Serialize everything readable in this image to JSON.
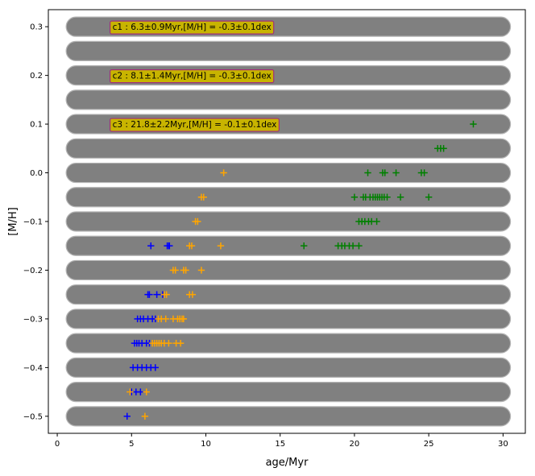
{
  "chart_data": {
    "type": "scatter",
    "title": "",
    "xlabel": "age/Myr",
    "ylabel": "[M/H]",
    "xlim": [
      -0.6,
      31.5
    ],
    "ylim": [
      -0.535,
      0.335
    ],
    "xticks": [
      0,
      5,
      10,
      15,
      20,
      25,
      30
    ],
    "xtick_labels": [
      "0",
      "5",
      "10",
      "15",
      "20",
      "25",
      "30"
    ],
    "yticks": [
      -0.5,
      -0.4,
      -0.3,
      -0.2,
      -0.1,
      0.0,
      0.1,
      0.2,
      0.3
    ],
    "ytick_labels": [
      "−0.5",
      "−0.4",
      "−0.3",
      "−0.2",
      "−0.1",
      "0.0",
      "0.1",
      "0.2",
      "0.3"
    ],
    "grid": false,
    "legend": "none",
    "band_rows": [
      -0.5,
      -0.45,
      -0.4,
      -0.35,
      -0.3,
      -0.25,
      -0.2,
      -0.15,
      -0.1,
      -0.05,
      0.0,
      0.05,
      0.1,
      0.15,
      0.2,
      0.25,
      0.3
    ],
    "band_xrange": [
      0.6,
      30.5
    ],
    "band_color": "#808080",
    "annotations": [
      {
        "text": "c1 : 6.3±0.9Myr,[M/H] = -0.3±0.1dex",
        "x": 3.5,
        "y": 0.3
      },
      {
        "text": "c2 : 8.1±1.4Myr,[M/H] = -0.3±0.1dex",
        "x": 3.5,
        "y": 0.2
      },
      {
        "text": "c3 : 21.8±2.2Myr,[M/H] = -0.1±0.1dex",
        "x": 3.5,
        "y": 0.1
      }
    ],
    "annotation_style": {
      "facecolor": "#c8b400",
      "edgecolor": "#a0307a"
    },
    "series": [
      {
        "color": "#0000ff",
        "marker": "+",
        "points": [
          [
            4.7,
            -0.5
          ],
          [
            5.0,
            -0.45
          ],
          [
            5.3,
            -0.45
          ],
          [
            5.6,
            -0.45
          ],
          [
            5.1,
            -0.4
          ],
          [
            5.4,
            -0.4
          ],
          [
            5.7,
            -0.4
          ],
          [
            6.0,
            -0.4
          ],
          [
            6.3,
            -0.4
          ],
          [
            6.6,
            -0.4
          ],
          [
            5.2,
            -0.35
          ],
          [
            5.35,
            -0.35
          ],
          [
            5.5,
            -0.35
          ],
          [
            5.7,
            -0.35
          ],
          [
            6.0,
            -0.35
          ],
          [
            6.2,
            -0.35
          ],
          [
            5.4,
            -0.3
          ],
          [
            5.6,
            -0.3
          ],
          [
            5.8,
            -0.3
          ],
          [
            6.1,
            -0.3
          ],
          [
            6.4,
            -0.3
          ],
          [
            6.6,
            -0.3
          ],
          [
            6.1,
            -0.25
          ],
          [
            6.2,
            -0.25
          ],
          [
            6.7,
            -0.25
          ],
          [
            7.1,
            -0.25
          ],
          [
            6.3,
            -0.15
          ],
          [
            7.4,
            -0.15
          ],
          [
            7.5,
            -0.15
          ],
          [
            7.55,
            -0.15
          ]
        ]
      },
      {
        "color": "#ffa500",
        "marker": "+",
        "points": [
          [
            5.9,
            -0.5
          ],
          [
            4.9,
            -0.45
          ],
          [
            6.0,
            -0.45
          ],
          [
            6.4,
            -0.35
          ],
          [
            6.55,
            -0.35
          ],
          [
            6.7,
            -0.35
          ],
          [
            6.85,
            -0.35
          ],
          [
            7.0,
            -0.35
          ],
          [
            7.2,
            -0.35
          ],
          [
            7.5,
            -0.35
          ],
          [
            8.0,
            -0.35
          ],
          [
            8.3,
            -0.35
          ],
          [
            6.8,
            -0.3
          ],
          [
            7.0,
            -0.3
          ],
          [
            7.3,
            -0.3
          ],
          [
            7.8,
            -0.3
          ],
          [
            8.1,
            -0.3
          ],
          [
            8.25,
            -0.3
          ],
          [
            8.4,
            -0.3
          ],
          [
            8.5,
            -0.3
          ],
          [
            7.2,
            -0.25
          ],
          [
            7.35,
            -0.25
          ],
          [
            8.9,
            -0.25
          ],
          [
            9.1,
            -0.25
          ],
          [
            7.8,
            -0.2
          ],
          [
            7.95,
            -0.2
          ],
          [
            8.5,
            -0.2
          ],
          [
            8.65,
            -0.2
          ],
          [
            9.7,
            -0.2
          ],
          [
            8.9,
            -0.15
          ],
          [
            9.05,
            -0.15
          ],
          [
            11.0,
            -0.15
          ],
          [
            9.3,
            -0.1
          ],
          [
            9.45,
            -0.1
          ],
          [
            9.7,
            -0.05
          ],
          [
            9.85,
            -0.05
          ],
          [
            11.2,
            0.0
          ]
        ]
      },
      {
        "color": "#008000",
        "marker": "+",
        "points": [
          [
            16.6,
            -0.15
          ],
          [
            18.9,
            -0.15
          ],
          [
            19.15,
            -0.15
          ],
          [
            19.35,
            -0.15
          ],
          [
            19.65,
            -0.15
          ],
          [
            19.9,
            -0.15
          ],
          [
            20.3,
            -0.15
          ],
          [
            20.3,
            -0.1
          ],
          [
            20.5,
            -0.1
          ],
          [
            20.7,
            -0.1
          ],
          [
            20.95,
            -0.1
          ],
          [
            21.15,
            -0.1
          ],
          [
            21.5,
            -0.1
          ],
          [
            20.0,
            -0.05
          ],
          [
            20.6,
            -0.05
          ],
          [
            20.75,
            -0.05
          ],
          [
            21.05,
            -0.05
          ],
          [
            21.25,
            -0.05
          ],
          [
            21.4,
            -0.05
          ],
          [
            21.55,
            -0.05
          ],
          [
            21.7,
            -0.05
          ],
          [
            21.85,
            -0.05
          ],
          [
            22.0,
            -0.05
          ],
          [
            22.2,
            -0.05
          ],
          [
            23.1,
            -0.05
          ],
          [
            25.0,
            -0.05
          ],
          [
            20.9,
            0.0
          ],
          [
            21.9,
            0.0
          ],
          [
            22.05,
            0.0
          ],
          [
            22.8,
            0.0
          ],
          [
            24.5,
            0.0
          ],
          [
            24.7,
            0.0
          ],
          [
            25.6,
            0.05
          ],
          [
            25.8,
            0.05
          ],
          [
            26.0,
            0.05
          ],
          [
            28.0,
            0.1
          ]
        ]
      }
    ]
  }
}
